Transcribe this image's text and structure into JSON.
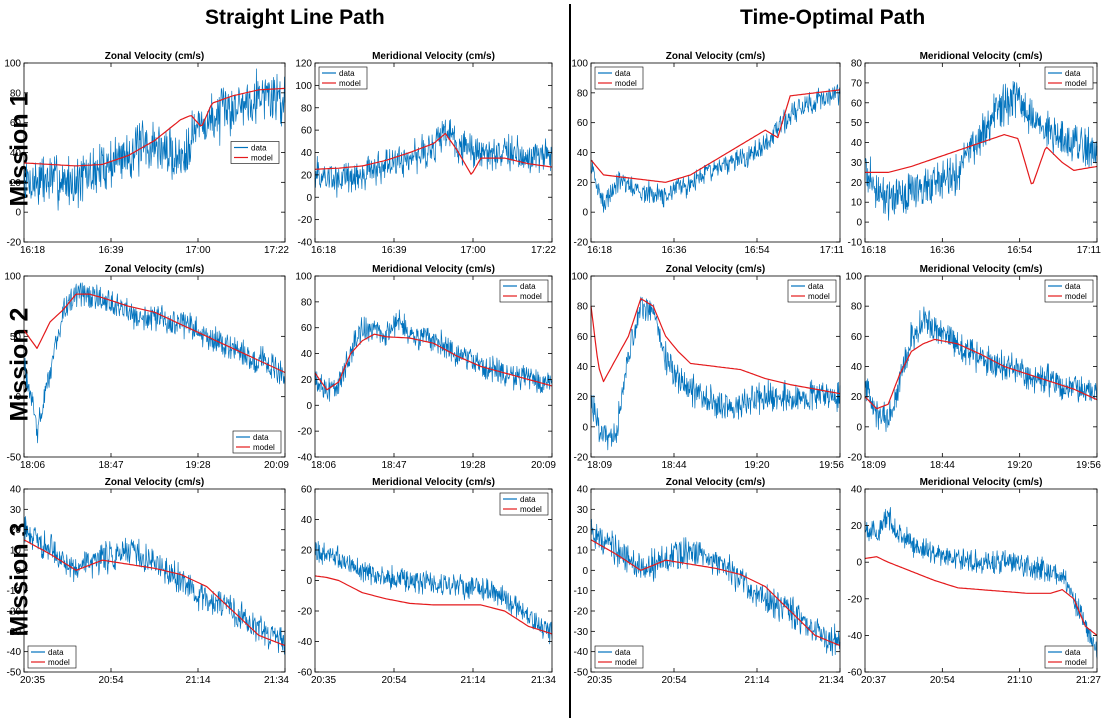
{
  "headers": {
    "left": "Straight Line Path",
    "right": "Time-Optimal Path"
  },
  "rows": [
    "Mission 1",
    "Mission 2",
    "Mission 3"
  ],
  "legend": {
    "data": "data",
    "model": "model"
  },
  "colors": {
    "data": "#0072BD",
    "model": "#E41A1C"
  },
  "chart_data": [
    {
      "id": "sl-m1-zonal",
      "type": "line",
      "title": "Zonal Velocity (cm/s)",
      "xticks": [
        "16:18",
        "16:39",
        "17:00",
        "17:22"
      ],
      "yticks": [
        -20,
        0,
        20,
        40,
        60,
        80,
        100
      ],
      "ylim": [
        -20,
        100
      ],
      "legend_pos": "right-center",
      "series": [
        {
          "name": "data",
          "x": [
            0,
            0.1,
            0.2,
            0.3,
            0.4,
            0.5,
            0.55,
            0.6,
            0.65,
            0.7,
            0.8,
            0.9,
            1
          ],
          "y": [
            20,
            22,
            20,
            30,
            40,
            45,
            40,
            35,
            55,
            60,
            70,
            80,
            75
          ],
          "noise": 14
        },
        {
          "name": "model",
          "x": [
            0,
            0.1,
            0.2,
            0.3,
            0.4,
            0.5,
            0.6,
            0.64,
            0.68,
            0.72,
            0.8,
            0.9,
            1
          ],
          "y": [
            33,
            32,
            31,
            32,
            38,
            48,
            62,
            65,
            57,
            73,
            78,
            82,
            83
          ],
          "noise": 0
        }
      ]
    },
    {
      "id": "sl-m1-merid",
      "type": "line",
      "title": "Meridional Velocity (cm/s)",
      "xticks": [
        "16:18",
        "16:39",
        "17:00",
        "17:22"
      ],
      "yticks": [
        -40,
        -20,
        0,
        20,
        40,
        60,
        80,
        100,
        120
      ],
      "ylim": [
        -40,
        120
      ],
      "legend_pos": "top-left",
      "series": [
        {
          "name": "data",
          "x": [
            0,
            0.1,
            0.2,
            0.3,
            0.4,
            0.5,
            0.55,
            0.6,
            0.7,
            0.8,
            0.9,
            1
          ],
          "y": [
            20,
            15,
            20,
            30,
            35,
            45,
            60,
            45,
            40,
            40,
            38,
            35
          ],
          "noise": 12
        },
        {
          "name": "model",
          "x": [
            0,
            0.1,
            0.2,
            0.3,
            0.4,
            0.5,
            0.55,
            0.6,
            0.66,
            0.7,
            0.8,
            0.9,
            1
          ],
          "y": [
            25,
            26,
            28,
            33,
            40,
            48,
            57,
            42,
            20,
            35,
            35,
            30,
            27
          ],
          "noise": 0
        }
      ]
    },
    {
      "id": "to-m1-zonal",
      "type": "line",
      "title": "Zonal Velocity (cm/s)",
      "xticks": [
        "16:18",
        "16:36",
        "16:54",
        "17:11"
      ],
      "yticks": [
        -20,
        0,
        20,
        40,
        60,
        80,
        100
      ],
      "ylim": [
        -20,
        100
      ],
      "legend_pos": "top-left",
      "series": [
        {
          "name": "data",
          "x": [
            0,
            0.05,
            0.1,
            0.2,
            0.3,
            0.4,
            0.5,
            0.6,
            0.7,
            0.8,
            0.9,
            1
          ],
          "y": [
            30,
            5,
            20,
            15,
            10,
            20,
            30,
            35,
            45,
            65,
            75,
            80
          ],
          "noise": 6
        },
        {
          "name": "model",
          "x": [
            0,
            0.05,
            0.1,
            0.2,
            0.3,
            0.4,
            0.5,
            0.6,
            0.7,
            0.75,
            0.8,
            0.9,
            1
          ],
          "y": [
            35,
            25,
            24,
            22,
            20,
            25,
            35,
            45,
            55,
            50,
            78,
            80,
            82
          ],
          "noise": 0
        }
      ]
    },
    {
      "id": "to-m1-merid",
      "type": "line",
      "title": "Meridional Velocity (cm/s)",
      "xticks": [
        "16:18",
        "16:36",
        "16:54",
        "17:11"
      ],
      "yticks": [
        -10,
        0,
        10,
        20,
        30,
        40,
        50,
        60,
        70,
        80
      ],
      "ylim": [
        -10,
        80
      ],
      "legend_pos": "top-right",
      "series": [
        {
          "name": "data",
          "x": [
            0,
            0.1,
            0.2,
            0.3,
            0.4,
            0.5,
            0.6,
            0.65,
            0.7,
            0.8,
            0.9,
            1
          ],
          "y": [
            25,
            10,
            15,
            20,
            25,
            45,
            60,
            62,
            55,
            45,
            40,
            35
          ],
          "noise": 8
        },
        {
          "name": "model",
          "x": [
            0,
            0.1,
            0.2,
            0.3,
            0.4,
            0.5,
            0.6,
            0.66,
            0.72,
            0.78,
            0.85,
            0.9,
            1
          ],
          "y": [
            25,
            25,
            28,
            32,
            36,
            40,
            44,
            42,
            18,
            38,
            30,
            26,
            28
          ],
          "noise": 0
        }
      ]
    },
    {
      "id": "sl-m2-zonal",
      "type": "line",
      "title": "Zonal Velocity (cm/s)",
      "xticks": [
        "18:06",
        "18:47",
        "19:28",
        "20:09"
      ],
      "yticks": [
        -50,
        0,
        50,
        100
      ],
      "ylim": [
        -50,
        100
      ],
      "legend_pos": "bottom-right",
      "series": [
        {
          "name": "data",
          "x": [
            0,
            0.05,
            0.1,
            0.15,
            0.2,
            0.3,
            0.4,
            0.5,
            0.6,
            0.7,
            0.8,
            0.9,
            1
          ],
          "y": [
            30,
            -30,
            20,
            70,
            85,
            80,
            70,
            65,
            60,
            50,
            40,
            30,
            20
          ],
          "noise": 9
        },
        {
          "name": "model",
          "x": [
            0,
            0.05,
            0.1,
            0.15,
            0.2,
            0.25,
            0.3,
            0.4,
            0.5,
            0.6,
            0.7,
            0.8,
            0.9,
            1
          ],
          "y": [
            55,
            40,
            62,
            72,
            85,
            85,
            82,
            75,
            70,
            60,
            50,
            40,
            30,
            20
          ],
          "noise": 0
        }
      ]
    },
    {
      "id": "sl-m2-merid",
      "type": "line",
      "title": "Meridional Velocity (cm/s)",
      "xticks": [
        "18:06",
        "18:47",
        "19:28",
        "20:09"
      ],
      "yticks": [
        -40,
        -20,
        0,
        20,
        40,
        60,
        80,
        100
      ],
      "ylim": [
        -40,
        100
      ],
      "legend_pos": "top-right",
      "series": [
        {
          "name": "data",
          "x": [
            0,
            0.05,
            0.1,
            0.15,
            0.2,
            0.3,
            0.35,
            0.4,
            0.5,
            0.6,
            0.7,
            0.8,
            0.9,
            1
          ],
          "y": [
            20,
            10,
            15,
            40,
            60,
            55,
            65,
            55,
            50,
            40,
            30,
            25,
            20,
            15
          ],
          "noise": 8
        },
        {
          "name": "model",
          "x": [
            0,
            0.05,
            0.1,
            0.15,
            0.2,
            0.25,
            0.3,
            0.4,
            0.5,
            0.6,
            0.7,
            0.8,
            0.9,
            1
          ],
          "y": [
            25,
            12,
            18,
            40,
            50,
            55,
            53,
            52,
            48,
            38,
            30,
            25,
            20,
            15
          ],
          "noise": 0
        }
      ]
    },
    {
      "id": "to-m2-zonal",
      "type": "line",
      "title": "Zonal Velocity (cm/s)",
      "xticks": [
        "18:09",
        "18:44",
        "19:20",
        "19:56"
      ],
      "yticks": [
        -20,
        0,
        20,
        40,
        60,
        80,
        100
      ],
      "ylim": [
        -20,
        100
      ],
      "legend_pos": "top-right",
      "series": [
        {
          "name": "data",
          "x": [
            0,
            0.05,
            0.1,
            0.15,
            0.2,
            0.25,
            0.3,
            0.35,
            0.4,
            0.5,
            0.6,
            0.7,
            0.8,
            0.9,
            1
          ],
          "y": [
            20,
            -10,
            -5,
            50,
            80,
            75,
            45,
            30,
            25,
            15,
            15,
            20,
            20,
            20,
            20
          ],
          "noise": 8
        },
        {
          "name": "model",
          "x": [
            0,
            0.03,
            0.05,
            0.1,
            0.15,
            0.2,
            0.25,
            0.3,
            0.35,
            0.4,
            0.5,
            0.6,
            0.7,
            0.8,
            0.9,
            1
          ],
          "y": [
            80,
            40,
            30,
            45,
            60,
            85,
            80,
            60,
            50,
            42,
            40,
            38,
            32,
            28,
            25,
            22
          ],
          "noise": 0
        }
      ]
    },
    {
      "id": "to-m2-merid",
      "type": "line",
      "title": "Meridional Velocity (cm/s)",
      "xticks": [
        "18:09",
        "18:44",
        "19:20",
        "19:56"
      ],
      "yticks": [
        -20,
        0,
        20,
        40,
        60,
        80,
        100
      ],
      "ylim": [
        -20,
        100
      ],
      "legend_pos": "top-right",
      "series": [
        {
          "name": "data",
          "x": [
            0,
            0.05,
            0.1,
            0.15,
            0.2,
            0.25,
            0.3,
            0.4,
            0.5,
            0.6,
            0.7,
            0.8,
            0.9,
            1
          ],
          "y": [
            30,
            10,
            5,
            30,
            60,
            70,
            65,
            55,
            45,
            40,
            35,
            30,
            25,
            22
          ],
          "noise": 8
        },
        {
          "name": "model",
          "x": [
            0,
            0.05,
            0.1,
            0.15,
            0.2,
            0.25,
            0.3,
            0.4,
            0.5,
            0.6,
            0.7,
            0.8,
            0.9,
            1
          ],
          "y": [
            20,
            12,
            15,
            35,
            50,
            55,
            58,
            55,
            48,
            40,
            35,
            30,
            25,
            18
          ],
          "noise": 0
        }
      ]
    },
    {
      "id": "sl-m3-zonal",
      "type": "line",
      "title": "Zonal Velocity (cm/s)",
      "xticks": [
        "20:35",
        "20:54",
        "21:14",
        "21:34"
      ],
      "yticks": [
        -50,
        -40,
        -30,
        -20,
        -10,
        0,
        10,
        20,
        30,
        40
      ],
      "ylim": [
        -50,
        40
      ],
      "legend_pos": "bottom-left",
      "series": [
        {
          "name": "data",
          "x": [
            0,
            0.1,
            0.2,
            0.3,
            0.4,
            0.5,
            0.6,
            0.7,
            0.8,
            0.9,
            1
          ],
          "y": [
            20,
            10,
            0,
            5,
            10,
            5,
            -5,
            -15,
            -20,
            -30,
            -35
          ],
          "noise": 6
        },
        {
          "name": "model",
          "x": [
            0,
            0.1,
            0.2,
            0.3,
            0.4,
            0.5,
            0.6,
            0.7,
            0.8,
            0.9,
            1
          ],
          "y": [
            15,
            8,
            0,
            5,
            3,
            1,
            -2,
            -8,
            -20,
            -32,
            -37
          ],
          "noise": 0
        }
      ]
    },
    {
      "id": "sl-m3-merid",
      "type": "line",
      "title": "Meridional Velocity (cm/s)",
      "xticks": [
        "20:35",
        "20:54",
        "21:14",
        "21:34"
      ],
      "yticks": [
        -60,
        -40,
        -20,
        0,
        20,
        40,
        60
      ],
      "ylim": [
        -60,
        60
      ],
      "legend_pos": "top-right",
      "series": [
        {
          "name": "data",
          "x": [
            0,
            0.1,
            0.2,
            0.3,
            0.4,
            0.5,
            0.6,
            0.7,
            0.8,
            0.9,
            1
          ],
          "y": [
            20,
            15,
            5,
            2,
            0,
            -2,
            -4,
            -5,
            -10,
            -25,
            -35
          ],
          "noise": 6
        },
        {
          "name": "model",
          "x": [
            0,
            0.05,
            0.1,
            0.2,
            0.3,
            0.4,
            0.5,
            0.6,
            0.7,
            0.8,
            0.9,
            1
          ],
          "y": [
            3,
            2,
            0,
            -8,
            -12,
            -15,
            -16,
            -16,
            -16,
            -20,
            -30,
            -35
          ],
          "noise": 0
        }
      ]
    },
    {
      "id": "to-m3-zonal",
      "type": "line",
      "title": "Zonal Velocity (cm/s)",
      "xticks": [
        "20:35",
        "20:54",
        "21:14",
        "21:34"
      ],
      "yticks": [
        -50,
        -40,
        -30,
        -20,
        -10,
        0,
        10,
        20,
        30,
        40
      ],
      "ylim": [
        -50,
        40
      ],
      "legend_pos": "bottom-left",
      "series": [
        {
          "name": "data",
          "x": [
            0,
            0.1,
            0.2,
            0.3,
            0.4,
            0.5,
            0.6,
            0.7,
            0.8,
            0.9,
            1
          ],
          "y": [
            20,
            10,
            0,
            5,
            10,
            5,
            -5,
            -15,
            -20,
            -30,
            -35
          ],
          "noise": 6
        },
        {
          "name": "model",
          "x": [
            0,
            0.1,
            0.2,
            0.3,
            0.4,
            0.5,
            0.6,
            0.7,
            0.8,
            0.9,
            1
          ],
          "y": [
            15,
            8,
            0,
            5,
            3,
            1,
            -2,
            -8,
            -20,
            -32,
            -37
          ],
          "noise": 0
        }
      ]
    },
    {
      "id": "to-m3-merid",
      "type": "line",
      "title": "Meridional Velocity (cm/s)",
      "xticks": [
        "20:37",
        "20:54",
        "21:10",
        "21:27"
      ],
      "yticks": [
        -60,
        -40,
        -20,
        0,
        20,
        40
      ],
      "ylim": [
        -60,
        40
      ],
      "legend_pos": "bottom-right",
      "series": [
        {
          "name": "data",
          "x": [
            0,
            0.05,
            0.1,
            0.15,
            0.2,
            0.3,
            0.4,
            0.5,
            0.6,
            0.7,
            0.8,
            0.85,
            0.9,
            0.95,
            1
          ],
          "y": [
            20,
            15,
            25,
            15,
            10,
            5,
            2,
            0,
            0,
            -2,
            -5,
            -8,
            -20,
            -35,
            -50
          ],
          "noise": 5
        },
        {
          "name": "model",
          "x": [
            0,
            0.05,
            0.1,
            0.2,
            0.3,
            0.4,
            0.5,
            0.6,
            0.7,
            0.8,
            0.85,
            0.9,
            0.95,
            1
          ],
          "y": [
            2,
            3,
            0,
            -5,
            -10,
            -14,
            -15,
            -16,
            -17,
            -17,
            -15,
            -20,
            -35,
            -40
          ],
          "noise": 0
        }
      ]
    }
  ]
}
